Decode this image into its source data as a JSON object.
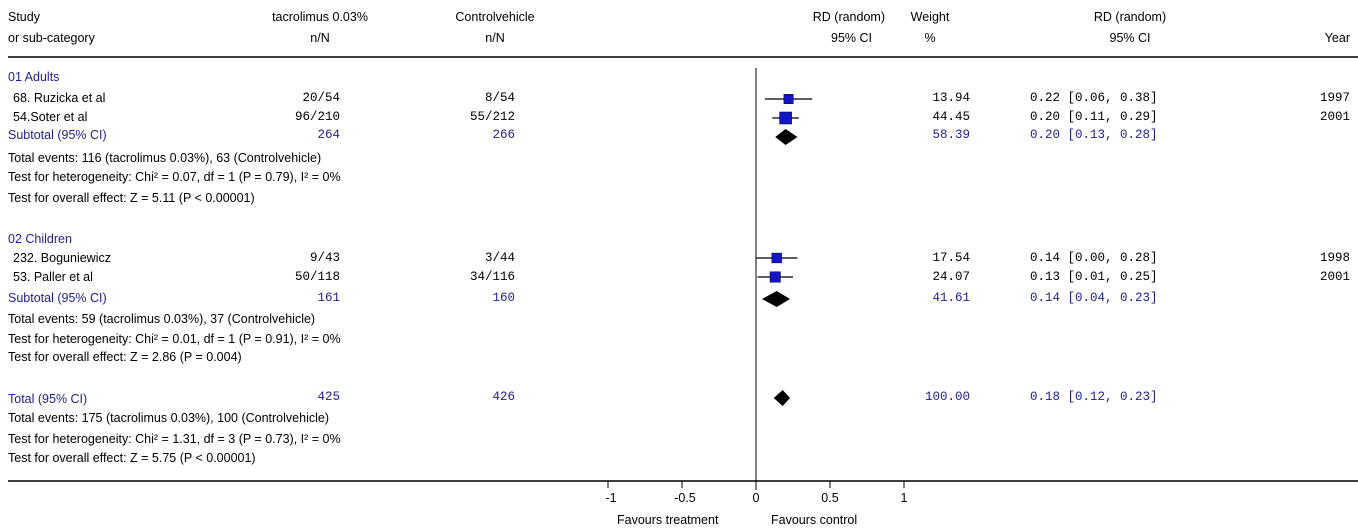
{
  "header": {
    "study": "Study",
    "study_sub": "or sub-category",
    "treatment": "tacrolimus 0.03%",
    "treatment_sub": "n/N",
    "control": "Controlvehicle",
    "control_sub": "n/N",
    "rd": "RD (random)",
    "rd_ci": "95% CI",
    "weight": "Weight",
    "weight_unit": "%",
    "rd2": "RD (random)",
    "rd2_ci": "95% CI",
    "year": "Year"
  },
  "groups": [
    {
      "title": "01 Adults",
      "studies": [
        {
          "name": "68. Ruzicka et al",
          "treatment": "20/54",
          "control": "8/54",
          "weight": "13.94",
          "ci_text": "0.22 [0.06, 0.38]",
          "year": "1997",
          "rd": 0.22,
          "lo": 0.06,
          "hi": 0.38,
          "w": 13.94
        },
        {
          "name": "54.Soter et al",
          "treatment": "96/210",
          "control": "55/212",
          "weight": "44.45",
          "ci_text": "0.20 [0.11, 0.29]",
          "year": "2001",
          "rd": 0.2,
          "lo": 0.11,
          "hi": 0.29,
          "w": 44.45
        }
      ],
      "subtotal": {
        "label": "Subtotal (95% CI)",
        "treatment": "264",
        "control": "266",
        "weight": "58.39",
        "ci_text": "0.20 [0.13, 0.28]",
        "rd": 0.2,
        "lo": 0.13,
        "hi": 0.28
      },
      "events": "Total events: 116 (tacrolimus 0.03%), 63 (Controlvehicle)",
      "heterogeneity": "Test for heterogeneity: Chi² = 0.07, df = 1 (P = 0.79), I² = 0%",
      "overall": "Test for overall effect: Z = 5.11 (P < 0.00001)"
    },
    {
      "title": "02 Children",
      "studies": [
        {
          "name": "232. Boguniewicz",
          "treatment": "9/43",
          "control": "3/44",
          "weight": "17.54",
          "ci_text": "0.14 [0.00, 0.28]",
          "year": "1998",
          "rd": 0.14,
          "lo": 0.0,
          "hi": 0.28,
          "w": 17.54
        },
        {
          "name": "53. Paller et al",
          "treatment": "50/118",
          "control": "34/116",
          "weight": "24.07",
          "ci_text": "0.13 [0.01, 0.25]",
          "year": "2001",
          "rd": 0.13,
          "lo": 0.01,
          "hi": 0.25,
          "w": 24.07
        }
      ],
      "subtotal": {
        "label": "Subtotal (95% CI)",
        "treatment": "161",
        "control": "160",
        "weight": "41.61",
        "ci_text": "0.14 [0.04, 0.23]",
        "rd": 0.14,
        "lo": 0.04,
        "hi": 0.23
      },
      "events": "Total events: 59 (tacrolimus 0.03%), 37 (Controlvehicle)",
      "heterogeneity": "Test for heterogeneity: Chi² = 0.01, df = 1 (P = 0.91), I² = 0%",
      "overall": "Test for overall effect: Z = 2.86 (P = 0.004)"
    }
  ],
  "total": {
    "label": "Total (95% CI)",
    "treatment": "425",
    "control": "426",
    "weight": "100.00",
    "ci_text": "0.18 [0.12, 0.23]",
    "rd": 0.18,
    "lo": 0.12,
    "hi": 0.23,
    "events": "Total events: 175 (tacrolimus 0.03%), 100 (Controlvehicle)",
    "heterogeneity": "Test for heterogeneity: Chi² = 1.31, df = 3 (P = 0.73), I² = 0%",
    "overall": "Test for overall effect: Z = 5.75 (P < 0.00001)"
  },
  "axis": {
    "ticks": [
      "-1",
      "-0.5",
      "0",
      "0.5",
      "1"
    ],
    "favours_left": "Favours treatment",
    "favours_right": "Favours control"
  },
  "colors": {
    "marker": "#1515c8",
    "diamond": "#000000",
    "summary_text": "#1f1f8f"
  },
  "chart_data": {
    "type": "forest",
    "xlim": [
      -1,
      1
    ],
    "points": [
      {
        "label": "68. Ruzicka et al",
        "rd": 0.22,
        "ci": [
          0.06,
          0.38
        ],
        "weight": 13.94
      },
      {
        "label": "54.Soter et al",
        "rd": 0.2,
        "ci": [
          0.11,
          0.29
        ],
        "weight": 44.45
      },
      {
        "label": "Subtotal (95% CI)",
        "rd": 0.2,
        "ci": [
          0.13,
          0.28
        ],
        "weight": 58.39
      },
      {
        "label": "232. Boguniewicz",
        "rd": 0.14,
        "ci": [
          0.0,
          0.28
        ],
        "weight": 17.54
      },
      {
        "label": "53. Paller et al",
        "rd": 0.13,
        "ci": [
          0.01,
          0.25
        ],
        "weight": 24.07
      },
      {
        "label": "Subtotal (95% CI)",
        "rd": 0.14,
        "ci": [
          0.04,
          0.23
        ],
        "weight": 41.61
      },
      {
        "label": "Total (95% CI)",
        "rd": 0.18,
        "ci": [
          0.12,
          0.23
        ],
        "weight": 100.0
      }
    ]
  }
}
